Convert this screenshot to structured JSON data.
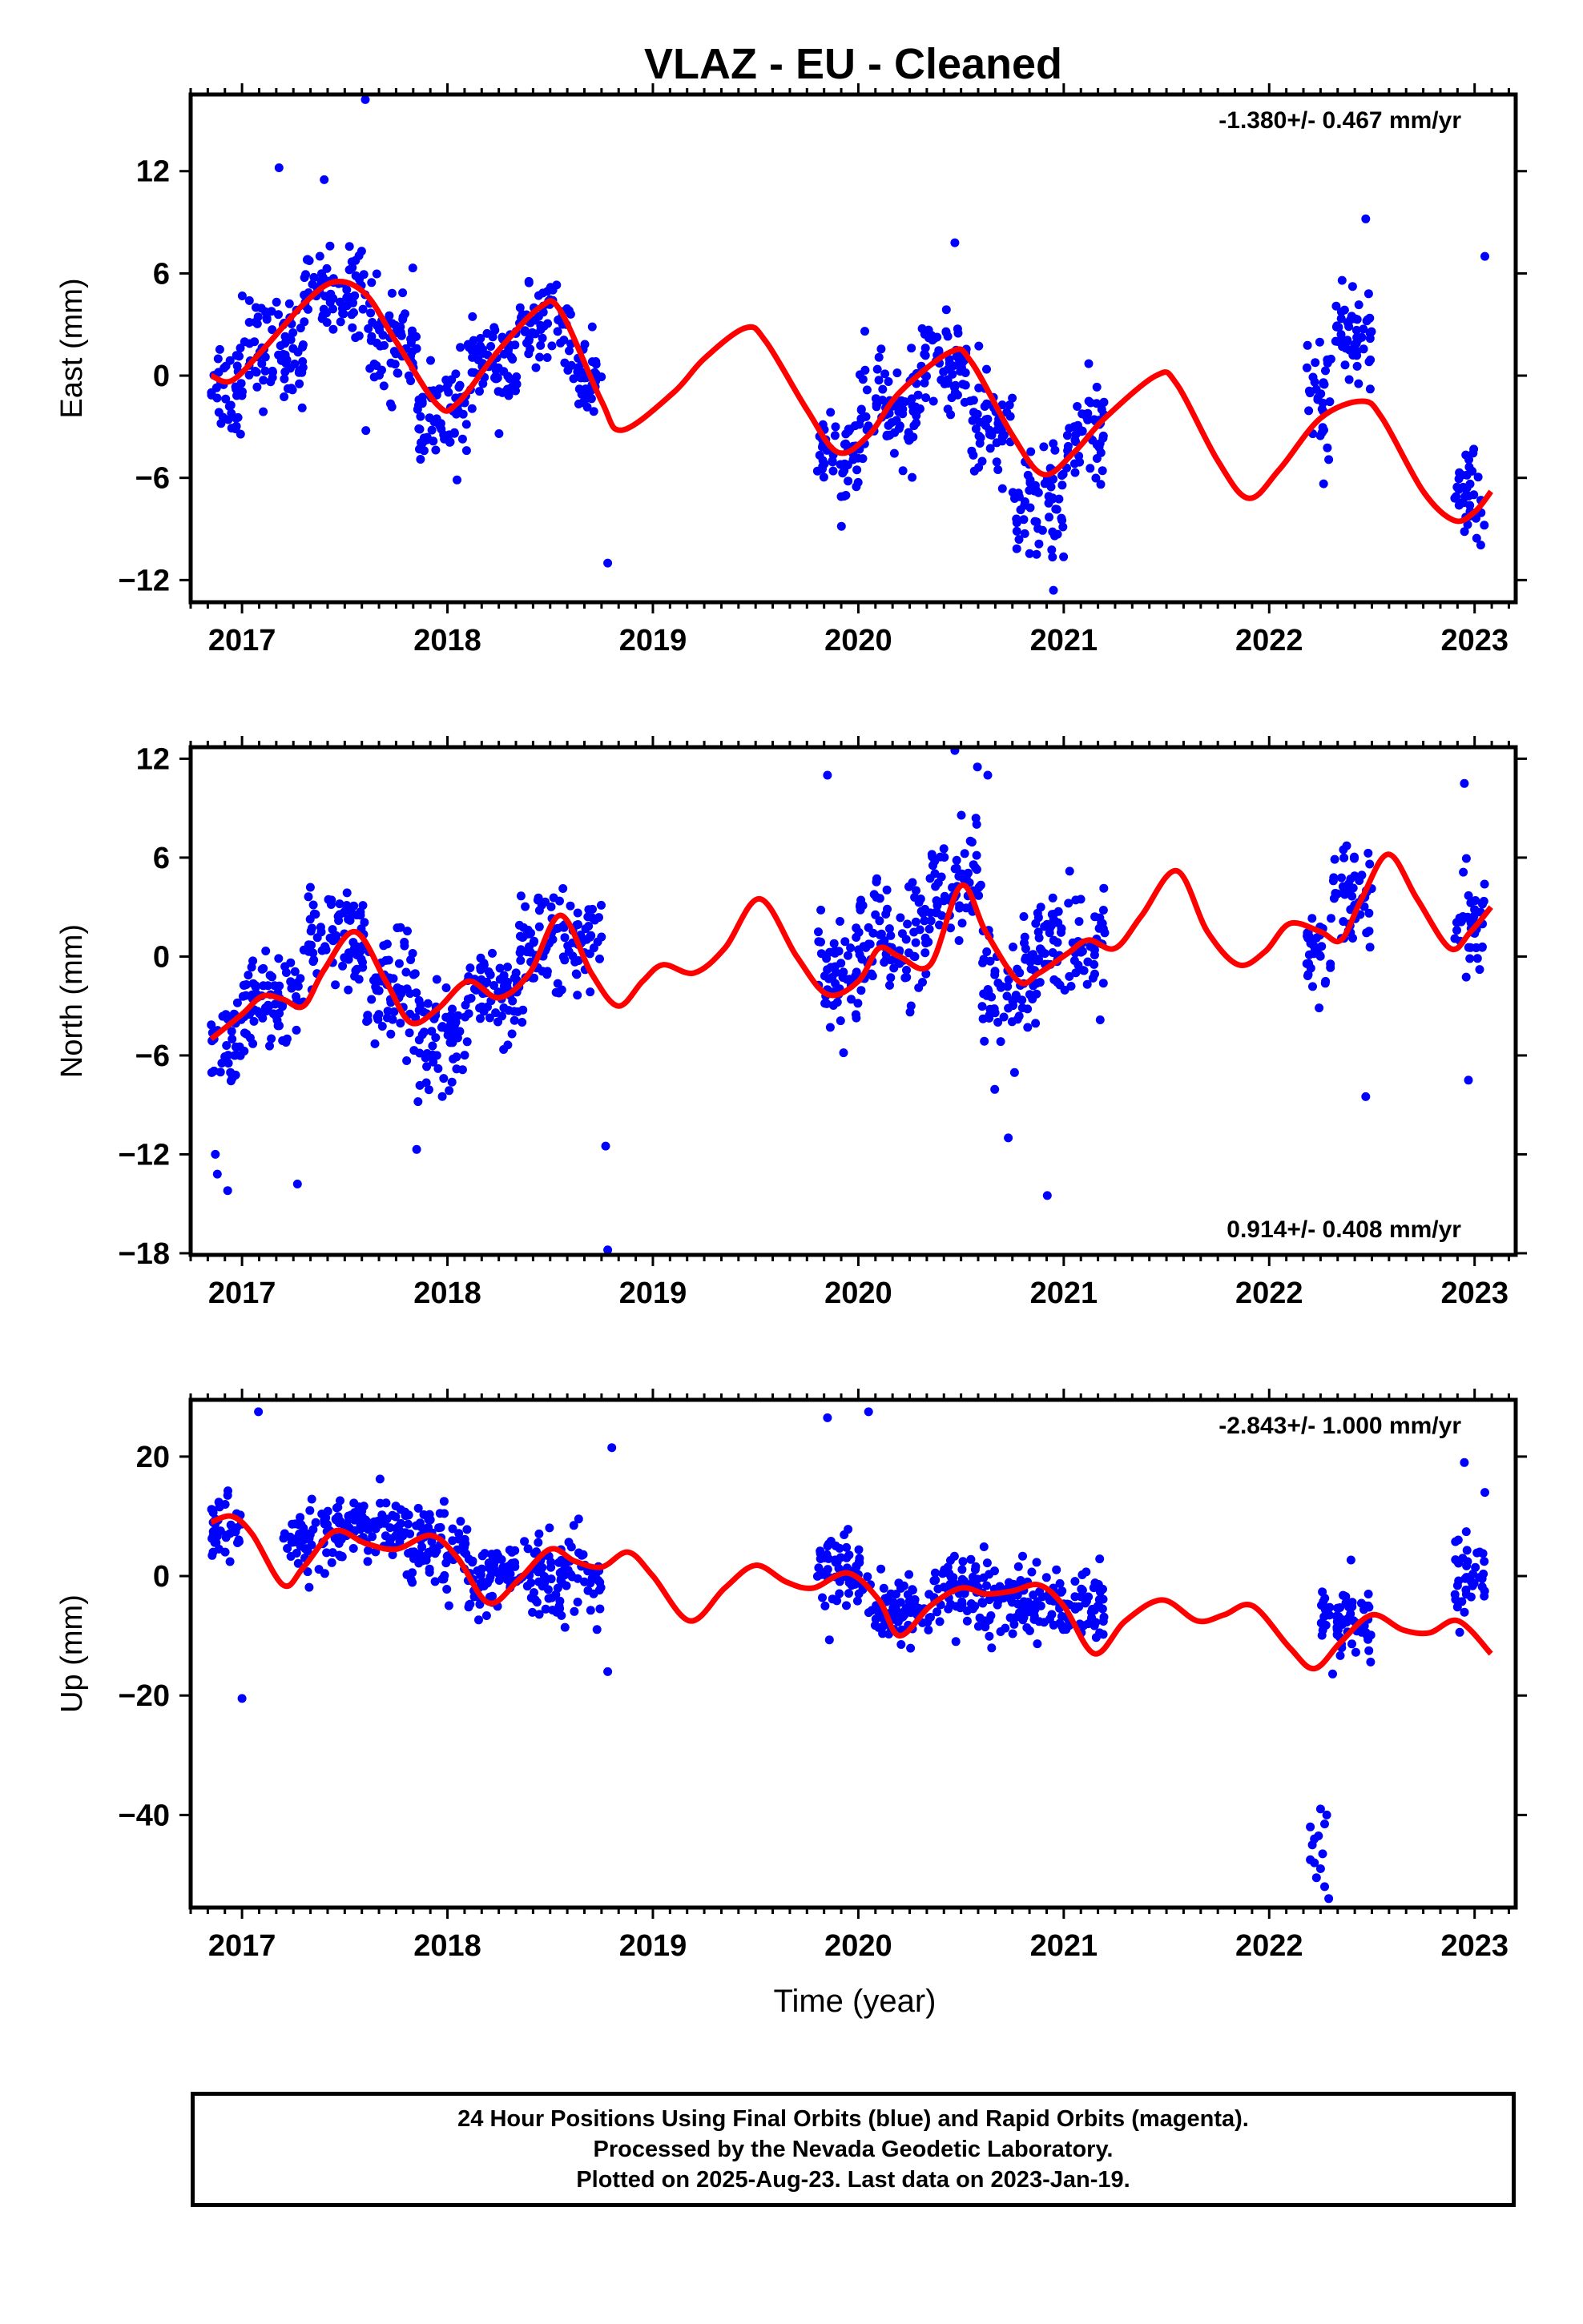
{
  "title": "VLAZ  - EU - Cleaned",
  "x_axis": {
    "label": "Time (year)",
    "ticks": [
      "2017",
      "2018",
      "2019",
      "2020",
      "2021",
      "2022",
      "2023"
    ]
  },
  "footer": {
    "line1": "24 Hour Positions Using Final Orbits (blue) and Rapid Orbits (magenta).",
    "line2": "Processed by the Nevada Geodetic Laboratory.",
    "line3": "Plotted on 2025-Aug-23. Last data on 2023-Jan-19."
  },
  "colors": {
    "points": "#0000ff",
    "model": "#ff0000",
    "frame": "#000000"
  },
  "chart_data": [
    {
      "type": "scatter",
      "ylabel": "East (mm)",
      "rate_text": "-1.380+/- 0.467 mm/yr",
      "rate_position": "top-right",
      "xlim": [
        2016.75,
        2023.2
      ],
      "ylim": [
        -13.3,
        16.5
      ],
      "yticks": [
        12,
        6,
        0,
        -6,
        -12
      ],
      "ytick_labels": [
        "12",
        "6",
        "0",
        "−6",
        "−12"
      ],
      "data_clusters": [
        {
          "range": [
            2016.85,
            2017.0
          ],
          "center": -0.5,
          "spread": 2.2
        },
        {
          "range": [
            2017.0,
            2017.3
          ],
          "center": 1.5,
          "spread": 2.0
        },
        {
          "range": [
            2017.3,
            2017.6
          ],
          "center": 5.0,
          "spread": 1.6
        },
        {
          "range": [
            2017.6,
            2017.85
          ],
          "center": 2.0,
          "spread": 2.0
        },
        {
          "range": [
            2017.85,
            2018.1
          ],
          "center": -2.5,
          "spread": 2.0
        },
        {
          "range": [
            2018.1,
            2018.35
          ],
          "center": 0.5,
          "spread": 1.8
        },
        {
          "range": [
            2018.35,
            2018.6
          ],
          "center": 3.0,
          "spread": 1.4
        },
        {
          "range": [
            2018.6,
            2018.75
          ],
          "center": 0.0,
          "spread": 2.0
        },
        {
          "range": [
            2019.8,
            2020.0
          ],
          "center": -5.0,
          "spread": 1.8
        },
        {
          "range": [
            2020.0,
            2020.3
          ],
          "center": -2.0,
          "spread": 2.0
        },
        {
          "range": [
            2020.3,
            2020.55
          ],
          "center": 0.5,
          "spread": 1.8
        },
        {
          "range": [
            2020.55,
            2020.75
          ],
          "center": -3.0,
          "spread": 2.0
        },
        {
          "range": [
            2020.75,
            2021.0
          ],
          "center": -7.5,
          "spread": 2.0
        },
        {
          "range": [
            2021.0,
            2021.2
          ],
          "center": -3.5,
          "spread": 2.2
        },
        {
          "range": [
            2022.18,
            2022.3
          ],
          "center": -1.0,
          "spread": 2.5
        },
        {
          "range": [
            2022.3,
            2022.5
          ],
          "center": 2.5,
          "spread": 2.2
        },
        {
          "range": [
            2022.9,
            2023.05
          ],
          "center": -7.0,
          "spread": 1.5
        }
      ],
      "outliers": [
        {
          "x": 2017.6,
          "y": 16.2
        },
        {
          "x": 2017.18,
          "y": 12.2
        },
        {
          "x": 2017.4,
          "y": 11.5
        },
        {
          "x": 2018.78,
          "y": -11.0
        },
        {
          "x": 2020.47,
          "y": 7.8
        },
        {
          "x": 2022.47,
          "y": 9.2
        },
        {
          "x": 2023.05,
          "y": 7.0
        },
        {
          "x": 2020.95,
          "y": -12.6
        }
      ],
      "model": [
        [
          2016.85,
          0.0
        ],
        [
          2016.95,
          -0.3
        ],
        [
          2017.1,
          1.5
        ],
        [
          2017.3,
          4.2
        ],
        [
          2017.45,
          5.5
        ],
        [
          2017.6,
          4.8
        ],
        [
          2017.75,
          2.0
        ],
        [
          2017.95,
          -1.7
        ],
        [
          2018.05,
          -1.6
        ],
        [
          2018.25,
          1.5
        ],
        [
          2018.45,
          4.0
        ],
        [
          2018.55,
          3.8
        ],
        [
          2018.75,
          -1.5
        ],
        [
          2018.85,
          -3.2
        ],
        [
          2019.1,
          -1.0
        ],
        [
          2019.25,
          1.0
        ],
        [
          2019.45,
          2.8
        ],
        [
          2019.55,
          2.0
        ],
        [
          2019.75,
          -2.0
        ],
        [
          2019.9,
          -4.5
        ],
        [
          2020.05,
          -3.5
        ],
        [
          2020.2,
          -1.0
        ],
        [
          2020.45,
          1.4
        ],
        [
          2020.55,
          0.8
        ],
        [
          2020.75,
          -3.5
        ],
        [
          2020.9,
          -5.8
        ],
        [
          2021.05,
          -4.5
        ],
        [
          2021.2,
          -2.5
        ],
        [
          2021.45,
          0.0
        ],
        [
          2021.55,
          -0.5
        ],
        [
          2021.75,
          -5.0
        ],
        [
          2021.9,
          -7.2
        ],
        [
          2022.05,
          -5.5
        ],
        [
          2022.25,
          -2.5
        ],
        [
          2022.45,
          -1.5
        ],
        [
          2022.55,
          -2.5
        ],
        [
          2022.75,
          -6.8
        ],
        [
          2022.9,
          -8.5
        ],
        [
          2023.0,
          -8.0
        ],
        [
          2023.08,
          -6.8
        ]
      ]
    },
    {
      "type": "scatter",
      "ylabel": "North (mm)",
      "rate_text": "0.914+/- 0.408 mm/yr",
      "rate_position": "bottom-right",
      "xlim": [
        2016.75,
        2023.2
      ],
      "ylim": [
        -18.1,
        12.7
      ],
      "yticks": [
        12,
        6,
        0,
        -6,
        -12,
        -18
      ],
      "ytick_labels": [
        "12",
        "6",
        "0",
        "−6",
        "−12",
        "−18"
      ],
      "data_clusters": [
        {
          "range": [
            2016.85,
            2017.0
          ],
          "center": -5.5,
          "spread": 2.0
        },
        {
          "range": [
            2017.0,
            2017.3
          ],
          "center": -3.0,
          "spread": 2.0
        },
        {
          "range": [
            2017.3,
            2017.6
          ],
          "center": 1.0,
          "spread": 2.0
        },
        {
          "range": [
            2017.6,
            2017.85
          ],
          "center": -2.0,
          "spread": 2.2
        },
        {
          "range": [
            2017.85,
            2018.1
          ],
          "center": -5.0,
          "spread": 2.2
        },
        {
          "range": [
            2018.1,
            2018.35
          ],
          "center": -2.5,
          "spread": 1.6
        },
        {
          "range": [
            2018.35,
            2018.75
          ],
          "center": 1.0,
          "spread": 2.0
        },
        {
          "range": [
            2019.8,
            2020.0
          ],
          "center": -1.0,
          "spread": 2.2
        },
        {
          "range": [
            2020.0,
            2020.35
          ],
          "center": 1.0,
          "spread": 2.5
        },
        {
          "range": [
            2020.35,
            2020.6
          ],
          "center": 4.5,
          "spread": 2.0
        },
        {
          "range": [
            2020.6,
            2020.85
          ],
          "center": -2.5,
          "spread": 3.0
        },
        {
          "range": [
            2020.85,
            2021.2
          ],
          "center": 0.5,
          "spread": 2.5
        },
        {
          "range": [
            2022.18,
            2022.3
          ],
          "center": 0.0,
          "spread": 2.0
        },
        {
          "range": [
            2022.3,
            2022.5
          ],
          "center": 3.5,
          "spread": 2.2
        },
        {
          "range": [
            2022.9,
            2023.05
          ],
          "center": 2.0,
          "spread": 2.5
        }
      ],
      "outliers": [
        {
          "x": 2016.87,
          "y": -12.0
        },
        {
          "x": 2016.88,
          "y": -13.2
        },
        {
          "x": 2016.93,
          "y": -14.2
        },
        {
          "x": 2017.27,
          "y": -13.8
        },
        {
          "x": 2017.85,
          "y": -11.7
        },
        {
          "x": 2018.77,
          "y": -11.5
        },
        {
          "x": 2018.78,
          "y": -17.8
        },
        {
          "x": 2019.85,
          "y": 11.0
        },
        {
          "x": 2020.47,
          "y": 12.5
        },
        {
          "x": 2020.58,
          "y": 11.5
        },
        {
          "x": 2020.63,
          "y": 11.0
        },
        {
          "x": 2020.73,
          "y": -11.0
        },
        {
          "x": 2020.92,
          "y": -14.5
        },
        {
          "x": 2022.47,
          "y": -8.5
        },
        {
          "x": 2022.95,
          "y": 10.5
        },
        {
          "x": 2022.97,
          "y": -7.5
        }
      ],
      "model": [
        [
          2016.85,
          -5.0
        ],
        [
          2017.0,
          -3.5
        ],
        [
          2017.1,
          -2.4
        ],
        [
          2017.2,
          -2.6
        ],
        [
          2017.3,
          -3.0
        ],
        [
          2017.4,
          -0.8
        ],
        [
          2017.55,
          1.5
        ],
        [
          2017.7,
          -1.5
        ],
        [
          2017.82,
          -4.0
        ],
        [
          2017.95,
          -3.2
        ],
        [
          2018.1,
          -1.5
        ],
        [
          2018.25,
          -2.5
        ],
        [
          2018.4,
          -1.0
        ],
        [
          2018.55,
          2.5
        ],
        [
          2018.7,
          -1.0
        ],
        [
          2018.83,
          -3.0
        ],
        [
          2018.95,
          -1.5
        ],
        [
          2019.05,
          -0.5
        ],
        [
          2019.2,
          -1.0
        ],
        [
          2019.35,
          0.5
        ],
        [
          2019.52,
          3.5
        ],
        [
          2019.7,
          0.0
        ],
        [
          2019.85,
          -2.3
        ],
        [
          2020.0,
          -1.5
        ],
        [
          2020.1,
          0.5
        ],
        [
          2020.2,
          0.0
        ],
        [
          2020.35,
          -0.5
        ],
        [
          2020.5,
          4.3
        ],
        [
          2020.62,
          1.5
        ],
        [
          2020.78,
          -1.5
        ],
        [
          2020.88,
          -1.0
        ],
        [
          2021.02,
          0.2
        ],
        [
          2021.12,
          1.0
        ],
        [
          2021.25,
          0.5
        ],
        [
          2021.38,
          2.5
        ],
        [
          2021.55,
          5.2
        ],
        [
          2021.7,
          1.5
        ],
        [
          2021.85,
          -0.5
        ],
        [
          2021.98,
          0.3
        ],
        [
          2022.1,
          2.0
        ],
        [
          2022.25,
          1.5
        ],
        [
          2022.35,
          1.0
        ],
        [
          2022.45,
          3.5
        ],
        [
          2022.58,
          6.2
        ],
        [
          2022.72,
          3.5
        ],
        [
          2022.88,
          0.5
        ],
        [
          2022.98,
          1.5
        ],
        [
          2023.08,
          3.0
        ]
      ]
    },
    {
      "type": "scatter",
      "ylabel": "Up (mm)",
      "rate_text": "-2.843+/- 1.000 mm/yr",
      "rate_position": "top-right",
      "xlim": [
        2016.75,
        2023.2
      ],
      "ylim": [
        -55.5,
        29.5
      ],
      "yticks": [
        20,
        0,
        -20,
        -40
      ],
      "ytick_labels": [
        "20",
        "0",
        "−20",
        "−40"
      ],
      "data_clusters": [
        {
          "range": [
            2016.85,
            2017.0
          ],
          "center": 7.0,
          "spread": 4.0
        },
        {
          "range": [
            2017.2,
            2017.5
          ],
          "center": 6.0,
          "spread": 3.5
        },
        {
          "range": [
            2017.5,
            2017.8
          ],
          "center": 8.0,
          "spread": 3.5
        },
        {
          "range": [
            2017.8,
            2018.1
          ],
          "center": 5.0,
          "spread": 4.0
        },
        {
          "range": [
            2018.1,
            2018.4
          ],
          "center": 0.5,
          "spread": 4.0
        },
        {
          "range": [
            2018.4,
            2018.75
          ],
          "center": 0.0,
          "spread": 4.5
        },
        {
          "range": [
            2019.8,
            2020.05
          ],
          "center": 2.0,
          "spread": 5.0
        },
        {
          "range": [
            2020.05,
            2020.35
          ],
          "center": -6.0,
          "spread": 3.5
        },
        {
          "range": [
            2020.35,
            2020.8
          ],
          "center": -3.0,
          "spread": 4.0
        },
        {
          "range": [
            2020.8,
            2021.2
          ],
          "center": -5.0,
          "spread": 4.0
        },
        {
          "range": [
            2022.25,
            2022.5
          ],
          "center": -8.0,
          "spread": 4.0
        },
        {
          "range": [
            2022.9,
            2023.05
          ],
          "center": 0.0,
          "spread": 5.0
        }
      ],
      "outliers": [
        {
          "x": 2017.08,
          "y": 27.5
        },
        {
          "x": 2017.0,
          "y": -20.5
        },
        {
          "x": 2018.8,
          "y": 21.5
        },
        {
          "x": 2019.85,
          "y": 26.5
        },
        {
          "x": 2020.05,
          "y": 27.5
        },
        {
          "x": 2018.78,
          "y": -16.0
        },
        {
          "x": 2022.95,
          "y": 19.0
        },
        {
          "x": 2023.05,
          "y": 14.0
        },
        {
          "x": 2022.2,
          "y": -42.0
        },
        {
          "x": 2022.21,
          "y": -45.0
        },
        {
          "x": 2022.22,
          "y": -48.0
        },
        {
          "x": 2022.23,
          "y": -50.5
        },
        {
          "x": 2022.24,
          "y": -43.5
        },
        {
          "x": 2022.25,
          "y": -39.0
        },
        {
          "x": 2022.26,
          "y": -46.5
        },
        {
          "x": 2022.27,
          "y": -52.0
        },
        {
          "x": 2022.28,
          "y": -40.0
        },
        {
          "x": 2022.29,
          "y": -54.0
        },
        {
          "x": 2022.2,
          "y": -47.5
        },
        {
          "x": 2022.22,
          "y": -44.0
        },
        {
          "x": 2022.25,
          "y": -49.0
        },
        {
          "x": 2022.27,
          "y": -41.5
        }
      ],
      "model": [
        [
          2016.85,
          9.0
        ],
        [
          2016.95,
          10.0
        ],
        [
          2017.05,
          7.0
        ],
        [
          2017.2,
          -1.5
        ],
        [
          2017.3,
          1.5
        ],
        [
          2017.45,
          7.5
        ],
        [
          2017.6,
          5.5
        ],
        [
          2017.75,
          4.5
        ],
        [
          2017.92,
          6.8
        ],
        [
          2018.05,
          3.0
        ],
        [
          2018.2,
          -4.5
        ],
        [
          2018.35,
          -0.5
        ],
        [
          2018.5,
          4.5
        ],
        [
          2018.62,
          2.5
        ],
        [
          2018.75,
          1.5
        ],
        [
          2018.88,
          4.0
        ],
        [
          2019.0,
          0.0
        ],
        [
          2019.18,
          -7.5
        ],
        [
          2019.35,
          -2.0
        ],
        [
          2019.5,
          1.8
        ],
        [
          2019.65,
          -1.0
        ],
        [
          2019.78,
          -2.0
        ],
        [
          2019.95,
          0.5
        ],
        [
          2020.1,
          -4.0
        ],
        [
          2020.2,
          -10.0
        ],
        [
          2020.35,
          -5.0
        ],
        [
          2020.5,
          -2.0
        ],
        [
          2020.62,
          -3.0
        ],
        [
          2020.75,
          -2.5
        ],
        [
          2020.88,
          -1.5
        ],
        [
          2021.0,
          -5.0
        ],
        [
          2021.15,
          -13.0
        ],
        [
          2021.3,
          -7.5
        ],
        [
          2021.48,
          -4.0
        ],
        [
          2021.65,
          -7.5
        ],
        [
          2021.78,
          -6.5
        ],
        [
          2021.92,
          -5.0
        ],
        [
          2022.1,
          -12.0
        ],
        [
          2022.22,
          -15.5
        ],
        [
          2022.35,
          -11.0
        ],
        [
          2022.5,
          -6.5
        ],
        [
          2022.65,
          -9.0
        ],
        [
          2022.78,
          -9.5
        ],
        [
          2022.92,
          -7.5
        ],
        [
          2023.08,
          -13.0
        ]
      ]
    }
  ]
}
